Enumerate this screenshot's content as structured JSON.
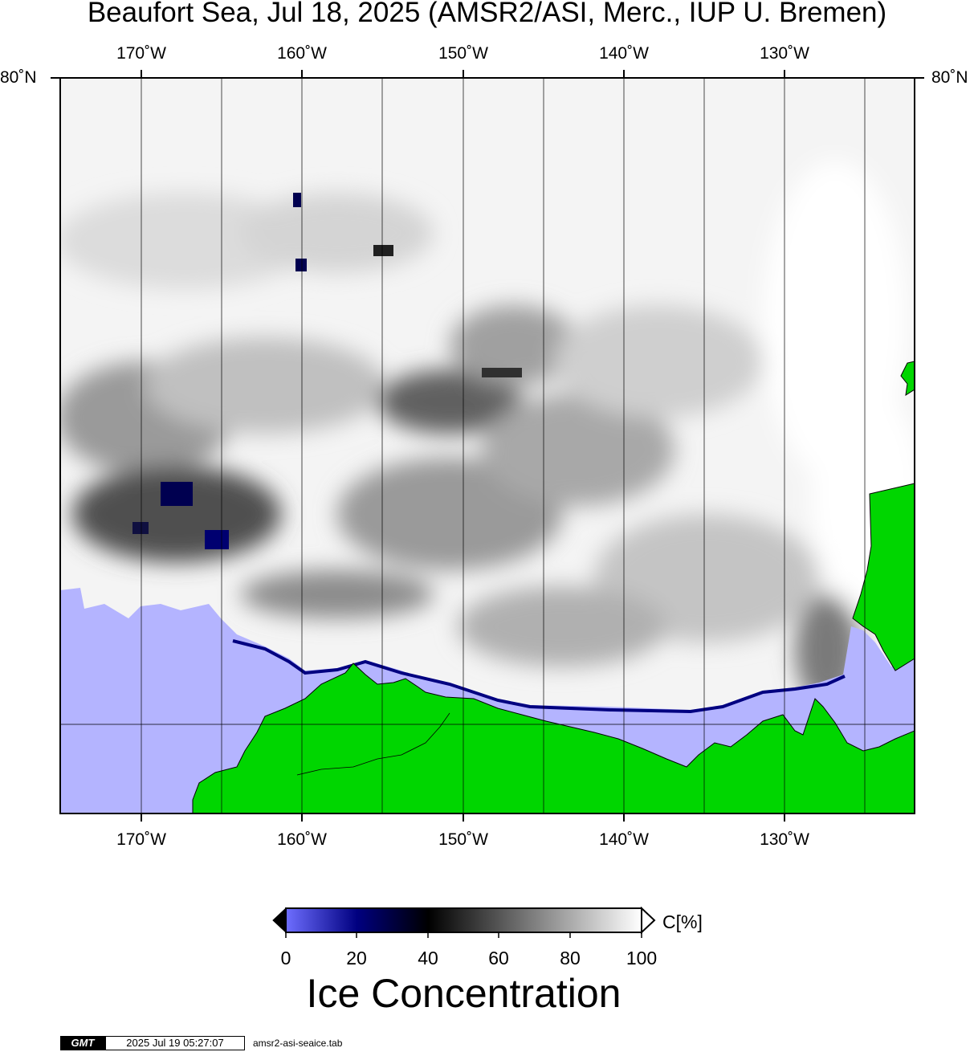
{
  "title": "Beaufort Sea, Jul 18, 2025 (AMSR2/ASI, Merc., IUP U. Bremen)",
  "map": {
    "lon_labels": [
      "170˚W",
      "160˚W",
      "150˚W",
      "140˚W",
      "130˚W"
    ],
    "lat_label_left": "80˚N",
    "lat_label_right": "80˚N",
    "colors": {
      "land": "#00d600",
      "open_water": "#b4b4ff",
      "grid": "#000000"
    }
  },
  "colorbar": {
    "ticks": [
      "0",
      "20",
      "40",
      "60",
      "80",
      "100"
    ],
    "unit_label": "C[%]",
    "title": "Ice Concentration",
    "stops": [
      "#6e6eff",
      "#000080",
      "#000000",
      "#808080",
      "#ffffff"
    ]
  },
  "footer": {
    "logo": "GMT",
    "timestamp": "2025 Jul 19 05:27:07",
    "filename": "amsr2-asi-seaice.tab"
  }
}
